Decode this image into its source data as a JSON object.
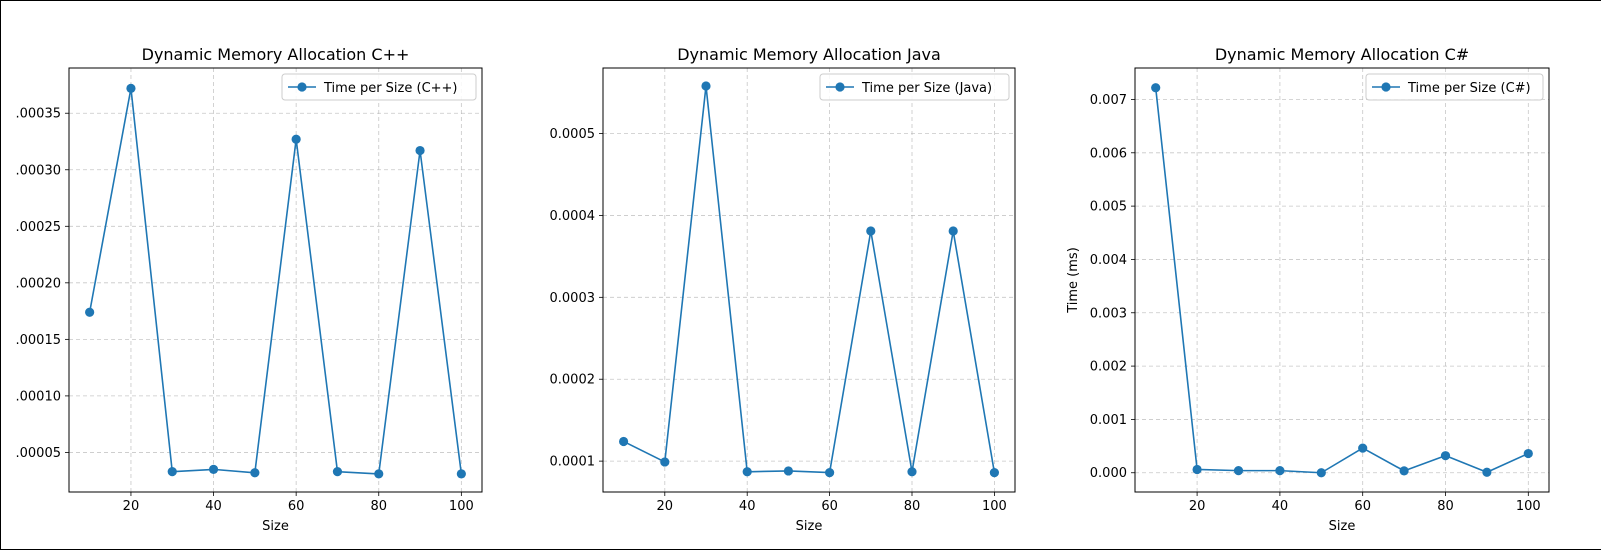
{
  "chart_data": [
    {
      "type": "line",
      "title": "Dynamic Memory Allocation C++",
      "xlabel": "Size",
      "ylabel": "",
      "x": [
        10,
        20,
        30,
        40,
        50,
        60,
        70,
        80,
        90,
        100
      ],
      "xlim": [
        5,
        105
      ],
      "ylim": [
        1.5e-05,
        0.00039
      ],
      "xticks": [
        20,
        40,
        60,
        80,
        100
      ],
      "xtick_labels": [
        "20",
        "40",
        "60",
        "80",
        "100"
      ],
      "yticks": [
        5e-05,
        0.0001,
        0.00015,
        0.0002,
        0.00025,
        0.0003,
        0.00035
      ],
      "ytick_labels": [
        ".00005",
        ".00010",
        ".00015",
        ".00020",
        ".00025",
        ".00030",
        ".00035"
      ],
      "grid": true,
      "legend_position": "top-right",
      "series": [
        {
          "name": "Time per Size (C++)",
          "color": "#1f77b4",
          "marker": "circle",
          "values": [
            0.000174,
            0.000372,
            3.3e-05,
            3.5e-05,
            3.2e-05,
            0.000327,
            3.3e-05,
            3.1e-05,
            0.000317,
            3.1e-05
          ]
        }
      ]
    },
    {
      "type": "line",
      "title": "Dynamic Memory Allocation Java",
      "xlabel": "Size",
      "ylabel": "",
      "x": [
        10,
        20,
        30,
        40,
        50,
        60,
        70,
        80,
        90,
        100
      ],
      "xlim": [
        5,
        105
      ],
      "ylim": [
        6.23e-05,
        0.00058
      ],
      "xticks": [
        20,
        40,
        60,
        80,
        100
      ],
      "xtick_labels": [
        "20",
        "40",
        "60",
        "80",
        "100"
      ],
      "yticks": [
        0.0001,
        0.0002,
        0.0003,
        0.0004,
        0.0005
      ],
      "ytick_labels": [
        "0.0001",
        "0.0002",
        "0.0003",
        "0.0004",
        "0.0005"
      ],
      "grid": true,
      "legend_position": "top-right",
      "series": [
        {
          "name": "Time per Size (Java)",
          "color": "#1f77b4",
          "marker": "circle",
          "values": [
            0.000124,
            9.9e-05,
            0.000558,
            8.7e-05,
            8.8e-05,
            8.6e-05,
            0.000381,
            8.7e-05,
            0.000381,
            8.6e-05
          ]
        }
      ]
    },
    {
      "type": "line",
      "title": "Dynamic Memory Allocation C#",
      "xlabel": "Size",
      "ylabel": "Time (ms)",
      "x": [
        10,
        20,
        30,
        40,
        50,
        60,
        70,
        80,
        90,
        100
      ],
      "xlim": [
        5,
        105
      ],
      "ylim": [
        -0.000361,
        0.00759
      ],
      "xticks": [
        20,
        40,
        60,
        80,
        100
      ],
      "xtick_labels": [
        "20",
        "40",
        "60",
        "80",
        "100"
      ],
      "yticks": [
        0.0,
        0.001,
        0.002,
        0.003,
        0.004,
        0.005,
        0.006,
        0.007
      ],
      "ytick_labels": [
        "0.000",
        "0.001",
        "0.002",
        "0.003",
        "0.004",
        "0.005",
        "0.006",
        "0.007"
      ],
      "grid": true,
      "legend_position": "top-right",
      "series": [
        {
          "name": "Time per Size (C#)",
          "color": "#1f77b4",
          "marker": "circle",
          "values": [
            0.00722,
            6.2e-05,
            4e-05,
            4e-05,
            0.0,
            0.000462,
            3.5e-05,
            0.00032,
            1e-05,
            0.00036
          ]
        }
      ]
    }
  ]
}
